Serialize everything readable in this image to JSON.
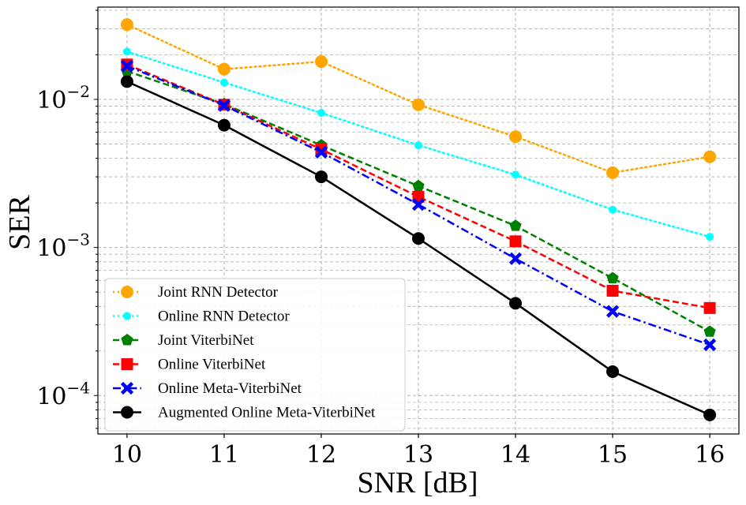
{
  "chart_data": {
    "type": "line",
    "title": "",
    "xlabel": "SNR [dB]",
    "ylabel": "SER",
    "yscale": "log",
    "xlim": [
      9.7,
      16.3
    ],
    "ylim": [
      5.5e-05,
      0.042
    ],
    "x": [
      10,
      11,
      12,
      13,
      14,
      15,
      16
    ],
    "x_tick_labels": [
      "10",
      "11",
      "12",
      "13",
      "14",
      "15",
      "16"
    ],
    "y_tick_labels": [
      {
        "value": 0.0001,
        "mantissa": "10",
        "exponent": "−4"
      },
      {
        "value": 0.001,
        "mantissa": "10",
        "exponent": "−3"
      },
      {
        "value": 0.01,
        "mantissa": "10",
        "exponent": "−2"
      }
    ],
    "grid": true,
    "legend_position": "lower-left",
    "series": [
      {
        "name": "Joint RNN Detector",
        "color": "#ffa500",
        "linestyle": "dotted",
        "marker": "circle",
        "values": [
          0.032,
          0.016,
          0.018,
          0.0092,
          0.0056,
          0.0032,
          0.0041
        ]
      },
      {
        "name": "Online RNN Detector",
        "color": "#00ffff",
        "linestyle": "dotted",
        "marker": "small-circle",
        "values": [
          0.021,
          0.013,
          0.0081,
          0.0049,
          0.0031,
          0.0018,
          0.00118
        ]
      },
      {
        "name": "Joint ViterbiNet",
        "color": "#008000",
        "linestyle": "dashed",
        "marker": "pentagon",
        "values": [
          0.0155,
          0.0093,
          0.0049,
          0.0026,
          0.0014,
          0.00062,
          0.00027
        ]
      },
      {
        "name": "Online ViterbiNet",
        "color": "#ff0000",
        "linestyle": "dashed",
        "marker": "square",
        "values": [
          0.0172,
          0.0092,
          0.0046,
          0.0022,
          0.0011,
          0.00051,
          0.00039
        ]
      },
      {
        "name": "Online Meta-ViterbiNet",
        "color": "#0000ff",
        "linestyle": "dashdot",
        "marker": "x",
        "values": [
          0.0168,
          0.0091,
          0.0044,
          0.00195,
          0.00084,
          0.00037,
          0.00022
        ]
      },
      {
        "name": "Augmented Online Meta-ViterbiNet",
        "color": "#000000",
        "linestyle": "solid",
        "marker": "circle",
        "values": [
          0.0132,
          0.0067,
          0.003,
          0.00115,
          0.00042,
          0.000145,
          7.4e-05
        ]
      }
    ]
  }
}
